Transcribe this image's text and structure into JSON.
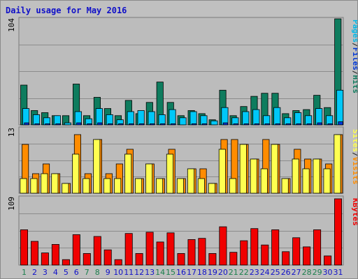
{
  "title": "Daily usage for May 2016",
  "chart_data": [
    {
      "type": "bar",
      "name": "pages-files-hits",
      "ylabel_parts": [
        "Pages",
        "/",
        "Files",
        "/",
        "Hits"
      ],
      "ymax_label": "104",
      "ylim": [
        0,
        104
      ],
      "series": [
        {
          "name": "Hits",
          "color": "#0e7c5e",
          "values": [
            39,
            14,
            12,
            9,
            9,
            40,
            9,
            27,
            16,
            9,
            24,
            11,
            22,
            42,
            22,
            9,
            14,
            11,
            5,
            34,
            9,
            18,
            28,
            31,
            31,
            11,
            14,
            15,
            29,
            17,
            104
          ]
        },
        {
          "name": "Files",
          "color": "#00c8f8",
          "values": [
            16,
            10,
            7,
            9,
            2,
            13,
            6,
            16,
            10,
            5,
            13,
            14,
            13,
            10,
            15,
            7,
            13,
            9,
            4,
            17,
            7,
            13,
            15,
            9,
            17,
            7,
            12,
            9,
            16,
            9,
            34
          ]
        },
        {
          "name": "Pages",
          "color": "#0038d8",
          "values": [
            2,
            1,
            1,
            1,
            0,
            2,
            1,
            2,
            1,
            1,
            1,
            1,
            1,
            1,
            1,
            0,
            1,
            1,
            0,
            2,
            1,
            1,
            1,
            1,
            1,
            1,
            1,
            1,
            2,
            1,
            3
          ]
        }
      ]
    },
    {
      "type": "bar",
      "name": "sites-visits",
      "ylabel_parts": [
        "Sites",
        "/",
        "Visits"
      ],
      "ymax_label": "13",
      "ylim": [
        0,
        13
      ],
      "series": [
        {
          "name": "Visits",
          "color": "#ff8c00",
          "values": [
            10,
            4,
            6,
            4,
            2,
            12,
            4,
            11,
            4,
            6,
            9,
            3,
            6,
            3,
            9,
            3,
            5,
            5,
            2,
            11,
            11,
            10,
            7,
            11,
            10,
            3,
            9,
            7,
            7,
            6,
            12
          ]
        },
        {
          "name": "Sites",
          "color": "#ffff50",
          "values": [
            3,
            3,
            4,
            4,
            2,
            8,
            3,
            11,
            3,
            3,
            8,
            3,
            6,
            3,
            8,
            3,
            5,
            3,
            2,
            9,
            3,
            10,
            7,
            5,
            10,
            3,
            7,
            5,
            7,
            5,
            12
          ]
        }
      ]
    },
    {
      "type": "bar",
      "name": "kbytes",
      "ylabel_parts": [
        "KBytes"
      ],
      "ymax_label": "109",
      "ylim": [
        0,
        109
      ],
      "series": [
        {
          "name": "KBytes",
          "color": "#f00000",
          "values": [
            58,
            39,
            20,
            34,
            9,
            50,
            19,
            47,
            25,
            9,
            52,
            19,
            54,
            38,
            53,
            19,
            42,
            44,
            19,
            63,
            21,
            40,
            60,
            33,
            58,
            22,
            45,
            30,
            58,
            15,
            109
          ]
        }
      ]
    }
  ],
  "x_ticks": [
    "1",
    "2",
    "3",
    "4",
    "5",
    "6",
    "7",
    "8",
    "9",
    "10",
    "11",
    "12",
    "13",
    "14",
    "15",
    "16",
    "17",
    "18",
    "19",
    "20",
    "21",
    "22",
    "23",
    "24",
    "25",
    "26",
    "27",
    "28",
    "29",
    "30",
    "31"
  ],
  "weekend_days": [
    1,
    7,
    8,
    14,
    15,
    21,
    22,
    28,
    29
  ],
  "colors": {
    "weekday_tick": "#1010c8",
    "weekend_tick": "#1b7f4d",
    "frame_bg": "#c0c0c0",
    "panel_bg": "#bcbcbc",
    "title": "#1010c8"
  }
}
